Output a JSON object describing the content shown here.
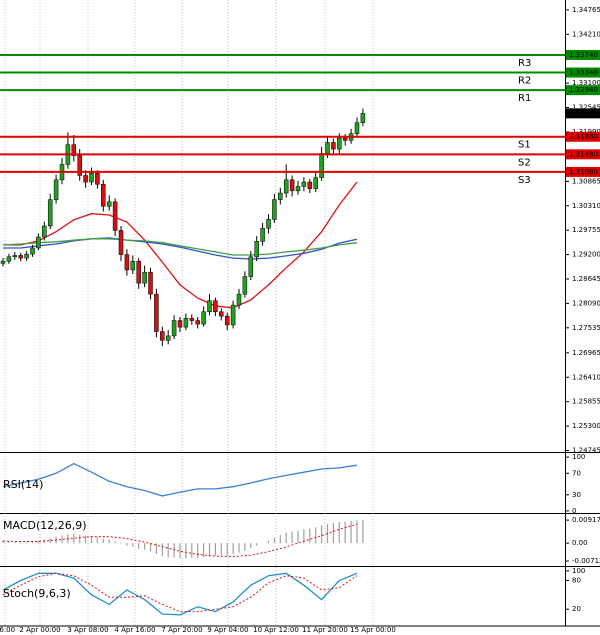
{
  "chart_data": [
    {
      "type": "candlestick",
      "ylim": [
        1.2471,
        1.3499
      ],
      "yticks": [
        {
          "value": 1.34765,
          "label": "1.34765"
        },
        {
          "value": 1.3421,
          "label": "1.34210"
        },
        {
          "value": 1.331,
          "label": "1.33100"
        },
        {
          "value": 1.32545,
          "label": "1.32545"
        },
        {
          "value": 1.3199,
          "label": "1.31990"
        },
        {
          "value": 1.30865,
          "label": "1.30865"
        },
        {
          "value": 1.3031,
          "label": "1.30310"
        },
        {
          "value": 1.29755,
          "label": "1.29755"
        },
        {
          "value": 1.292,
          "label": "1.29200"
        },
        {
          "value": 1.28645,
          "label": "1.28645"
        },
        {
          "value": 1.2809,
          "label": "1.28090"
        },
        {
          "value": 1.27535,
          "label": "1.27535"
        },
        {
          "value": 1.26965,
          "label": "1.26965"
        },
        {
          "value": 1.2641,
          "label": "1.26410"
        },
        {
          "value": 1.25855,
          "label": "1.25855"
        },
        {
          "value": 1.253,
          "label": "1.25300"
        },
        {
          "value": 1.24745,
          "label": "1.24745"
        }
      ],
      "xtick_labels": [
        "16:00",
        "2 Apr 00:00",
        "3 Apr 08:00",
        "4 Apr 16:00",
        "7 Apr 20:00",
        "9 Apr 04:00",
        "10 Apr 12:00",
        "11 Apr 20:00",
        "15 Apr 00:00"
      ],
      "up_color": "#22a022",
      "down_color": "#d41010",
      "ohlc": [
        [
          1.29,
          1.2912,
          1.2893,
          1.2905
        ],
        [
          1.2905,
          1.2922,
          1.2899,
          1.2915
        ],
        [
          1.2915,
          1.2926,
          1.2908,
          1.2918
        ],
        [
          1.2918,
          1.2924,
          1.2905,
          1.2912
        ],
        [
          1.2912,
          1.2928,
          1.2906,
          1.2921
        ],
        [
          1.2921,
          1.2942,
          1.2915,
          1.2935
        ],
        [
          1.2935,
          1.2968,
          1.293,
          1.296
        ],
        [
          1.296,
          1.2995,
          1.2952,
          1.2985
        ],
        [
          1.2985,
          1.3058,
          1.2978,
          1.3045
        ],
        [
          1.3045,
          1.3102,
          1.3036,
          1.309
        ],
        [
          1.309,
          1.314,
          1.308,
          1.3125
        ],
        [
          1.3125,
          1.3198,
          1.3115,
          1.317
        ],
        [
          1.317,
          1.3192,
          1.3132,
          1.3145
        ],
        [
          1.3145,
          1.316,
          1.3088,
          1.31
        ],
        [
          1.31,
          1.3112,
          1.3072,
          1.3085
        ],
        [
          1.3085,
          1.3118,
          1.3078,
          1.3105
        ],
        [
          1.3105,
          1.3112,
          1.307,
          1.308
        ],
        [
          1.308,
          1.309,
          1.3018,
          1.303
        ],
        [
          1.303,
          1.3055,
          1.302,
          1.304
        ],
        [
          1.304,
          1.3048,
          1.2962,
          1.2975
        ],
        [
          1.2975,
          1.2985,
          1.2905,
          1.292
        ],
        [
          1.292,
          1.2932,
          1.2872,
          1.2885
        ],
        [
          1.2885,
          1.2918,
          1.2876,
          1.2905
        ],
        [
          1.2905,
          1.2912,
          1.2842,
          1.2855
        ],
        [
          1.2855,
          1.2895,
          1.2846,
          1.288
        ],
        [
          1.288,
          1.289,
          1.2818,
          1.283
        ],
        [
          1.283,
          1.2842,
          1.2732,
          1.2745
        ],
        [
          1.2745,
          1.2756,
          1.2712,
          1.2725
        ],
        [
          1.2725,
          1.2748,
          1.2716,
          1.2735
        ],
        [
          1.2735,
          1.2782,
          1.2728,
          1.277
        ],
        [
          1.277,
          1.2778,
          1.2744,
          1.2755
        ],
        [
          1.2755,
          1.2786,
          1.2748,
          1.2775
        ],
        [
          1.2775,
          1.2784,
          1.276,
          1.277
        ],
        [
          1.277,
          1.2778,
          1.2752,
          1.2762
        ],
        [
          1.2762,
          1.2802,
          1.2756,
          1.279
        ],
        [
          1.279,
          1.283,
          1.2782,
          1.2815
        ],
        [
          1.2815,
          1.2822,
          1.278,
          1.279
        ],
        [
          1.279,
          1.2798,
          1.277,
          1.278
        ],
        [
          1.278,
          1.2788,
          1.2748,
          1.276
        ],
        [
          1.276,
          1.2815,
          1.2752,
          1.2805
        ],
        [
          1.2805,
          1.2842,
          1.2796,
          1.283
        ],
        [
          1.283,
          1.2882,
          1.2822,
          1.287
        ],
        [
          1.287,
          1.2928,
          1.2862,
          1.2915
        ],
        [
          1.2915,
          1.2962,
          1.2905,
          1.295
        ],
        [
          1.295,
          1.2992,
          1.294,
          1.298
        ],
        [
          1.298,
          1.3012,
          1.2968,
          1.3
        ],
        [
          1.3,
          1.3058,
          1.2992,
          1.3045
        ],
        [
          1.3045,
          1.3072,
          1.3034,
          1.306
        ],
        [
          1.306,
          1.3125,
          1.305,
          1.309
        ],
        [
          1.309,
          1.31,
          1.3052,
          1.3065
        ],
        [
          1.3065,
          1.3088,
          1.3056,
          1.3075
        ],
        [
          1.3075,
          1.3096,
          1.3064,
          1.3085
        ],
        [
          1.3085,
          1.3092,
          1.306,
          1.307
        ],
        [
          1.307,
          1.3108,
          1.3062,
          1.3095
        ],
        [
          1.3095,
          1.3165,
          1.3088,
          1.315
        ],
        [
          1.315,
          1.3188,
          1.314,
          1.3175
        ],
        [
          1.3175,
          1.3184,
          1.3146,
          1.316
        ],
        [
          1.316,
          1.3196,
          1.315,
          1.3185
        ],
        [
          1.3185,
          1.3194,
          1.3168,
          1.318
        ],
        [
          1.318,
          1.3206,
          1.3172,
          1.3195
        ],
        [
          1.3195,
          1.3232,
          1.3186,
          1.322
        ],
        [
          1.322,
          1.3252,
          1.3212,
          1.3241
        ]
      ],
      "x": [
        0,
        3,
        6,
        9,
        12,
        15,
        18,
        21,
        24,
        27,
        30,
        33,
        36,
        39,
        42,
        45,
        48,
        51,
        54,
        57,
        60
      ],
      "series": [
        {
          "color": "#e01010",
          "values": [
            1.2942,
            1.2942,
            1.2951,
            1.2972,
            1.2999,
            1.3013,
            1.301,
            1.2994,
            1.2953,
            1.2903,
            1.2851,
            1.2821,
            1.2803,
            1.2799,
            1.2817,
            1.2851,
            1.289,
            1.2926,
            1.2972,
            1.3033,
            1.3085
          ]
        },
        {
          "color": "#3050d0",
          "values": [
            1.2935,
            1.2935,
            1.294,
            1.2944,
            1.2951,
            1.2956,
            1.2958,
            1.2953,
            1.2949,
            1.2944,
            1.2937,
            1.2928,
            1.2919,
            1.2912,
            1.291,
            1.2912,
            1.2917,
            1.2923,
            1.2932,
            1.2946,
            1.2955
          ]
        },
        {
          "color": "#40a040",
          "values": [
            1.2942,
            1.2944,
            1.2947,
            1.2949,
            1.2953,
            1.2956,
            1.2956,
            1.2953,
            1.2951,
            1.2947,
            1.294,
            1.2933,
            1.2926,
            1.2919,
            1.2919,
            1.2921,
            1.2926,
            1.293,
            1.2935,
            1.2942,
            1.2947
          ]
        }
      ],
      "levels": [
        {
          "name": "R3",
          "value": 1.3374,
          "label": "1.33740",
          "color": "#008a00"
        },
        {
          "name": "R2",
          "value": 1.3334,
          "label": "1.33340",
          "color": "#008a00"
        },
        {
          "name": "R1",
          "value": 1.3294,
          "label": "1.32940",
          "color": "#008a00"
        },
        {
          "name": "S1",
          "value": 1.3188,
          "label": "1.31880",
          "color": "#e00000"
        },
        {
          "name": "S2",
          "value": 1.3148,
          "label": "1.31480",
          "color": "#e00000"
        },
        {
          "name": "S3",
          "value": 1.3108,
          "label": "1.31080",
          "color": "#e00000"
        }
      ],
      "last_price": {
        "value": 1.32412,
        "label": "1.32412"
      }
    },
    {
      "type": "line",
      "title": "RSI(14)",
      "ylim": [
        -2,
        104
      ],
      "yticks": [
        0,
        30,
        70,
        100
      ],
      "x": [
        0,
        3,
        6,
        9,
        12,
        15,
        18,
        21,
        24,
        27,
        30,
        33,
        36,
        39,
        42,
        45,
        48,
        51,
        54,
        57,
        60
      ],
      "series": [
        {
          "color": "#3a7fd8",
          "values": [
            45,
            52,
            59,
            70,
            88,
            72,
            55,
            45,
            38,
            28,
            35,
            41,
            41,
            45,
            52,
            60,
            66,
            72,
            78,
            80,
            85
          ]
        }
      ]
    },
    {
      "type": "macd",
      "title": "MACD(12,26,9)",
      "ylim": [
        -0.0091,
        0.0112
      ],
      "yticks": [
        -0.007129,
        {
          "value": 0,
          "label": "0.00"
        },
        0.009172
      ],
      "histogram": {
        "color": "#a0a0a0",
        "values": [
          0.0008,
          0.0006,
          0.0005,
          0.0004,
          0.0005,
          0.0007,
          0.001,
          0.0014,
          0.002,
          0.0026,
          0.0031,
          0.0036,
          0.0037,
          0.0034,
          0.003,
          0.0028,
          0.0024,
          0.0018,
          0.0014,
          0.0006,
          -0.0002,
          -0.001,
          -0.0014,
          -0.0022,
          -0.0026,
          -0.0033,
          -0.0044,
          -0.0052,
          -0.0057,
          -0.0058,
          -0.006,
          -0.006,
          -0.0059,
          -0.0059,
          -0.0055,
          -0.005,
          -0.005,
          -0.0049,
          -0.005,
          -0.0044,
          -0.0038,
          -0.003,
          -0.002,
          -0.001,
          0,
          0.001,
          0.0022,
          0.0032,
          0.0042,
          0.0046,
          0.005,
          0.0055,
          0.0058,
          0.0063,
          0.0071,
          0.0077,
          0.008,
          0.0084,
          0.0086,
          0.0088,
          0.009,
          0.0092
        ]
      },
      "x": [
        0,
        3,
        6,
        9,
        12,
        15,
        18,
        21,
        24,
        27,
        30,
        33,
        36,
        39,
        42,
        45,
        48,
        51,
        54,
        57,
        60
      ],
      "series": [
        {
          "color": "#e01010",
          "dashed": true,
          "values": [
            0.0008,
            0.0006,
            0.0007,
            0.0012,
            0.002,
            0.0026,
            0.0026,
            0.0018,
            0.0004,
            -0.0014,
            -0.0032,
            -0.0045,
            -0.0052,
            -0.0053,
            -0.0048,
            -0.0034,
            -0.0015,
            0.0008,
            0.003,
            0.0055,
            0.0075
          ]
        }
      ]
    },
    {
      "type": "line",
      "title": "Stoch(9,6,3)",
      "ylim": [
        -13,
        106
      ],
      "yticks": [
        20,
        80,
        100
      ],
      "x": [
        0,
        3,
        6,
        9,
        12,
        15,
        18,
        21,
        24,
        27,
        30,
        33,
        36,
        39,
        42,
        45,
        48,
        51,
        54,
        57,
        60
      ],
      "series": [
        {
          "color": "#2090d0",
          "values": [
            60,
            80,
            95,
            95,
            85,
            50,
            30,
            60,
            40,
            10,
            8,
            25,
            15,
            35,
            70,
            90,
            95,
            70,
            40,
            80,
            95
          ]
        },
        {
          "color": "#e01010",
          "dashed": true,
          "values": [
            50,
            70,
            88,
            95,
            90,
            70,
            45,
            45,
            48,
            30,
            15,
            15,
            20,
            25,
            45,
            75,
            90,
            85,
            60,
            65,
            90
          ]
        }
      ]
    }
  ]
}
